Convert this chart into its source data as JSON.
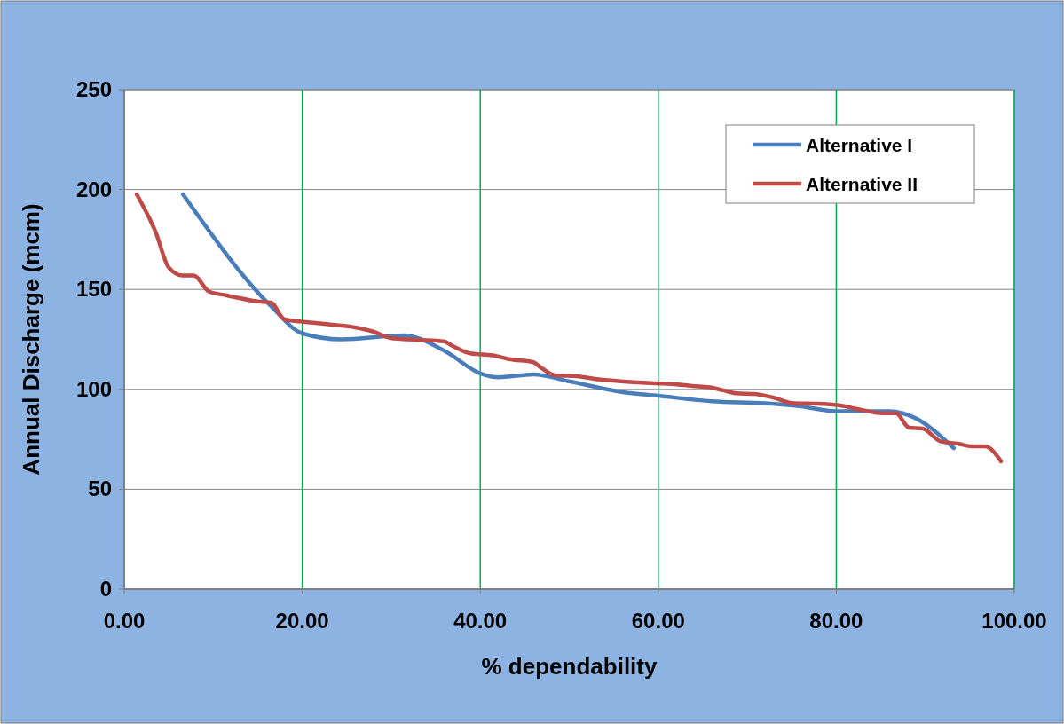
{
  "chart_data": {
    "type": "line",
    "xlabel": "% dependability",
    "ylabel": "Annual Discharge (mcm)",
    "xlim": [
      0,
      100
    ],
    "xticks": [
      {
        "value": 0,
        "label": "0.00"
      },
      {
        "value": 20,
        "label": "20.00"
      },
      {
        "value": 40,
        "label": "40.00"
      },
      {
        "value": 60,
        "label": "60.00"
      },
      {
        "value": 80,
        "label": "80.00"
      },
      {
        "value": 100,
        "label": "100.00"
      }
    ],
    "ylim": [
      0,
      250
    ],
    "yticks": [
      0,
      50,
      100,
      150,
      200,
      250
    ],
    "grid": true,
    "legend": "top right",
    "marker": "none",
    "line_style": "solid",
    "series": [
      {
        "name": "Alternative I",
        "color": "#4a7ebb",
        "x": [
          6.6,
          16.5,
          20,
          24.4,
          31.4,
          35.9,
          40,
          42,
          46,
          50,
          56,
          60,
          66,
          72,
          76,
          80,
          86,
          88.7,
          93.2
        ],
        "values": [
          197.6,
          141.6,
          128,
          125,
          127,
          119.5,
          108,
          106,
          107.5,
          104,
          98.6,
          96.8,
          94,
          93,
          91.5,
          89,
          89,
          86,
          70.6
        ]
      },
      {
        "name": "Alternative II",
        "color": "#be4b48",
        "x": [
          1.4,
          3.5,
          5,
          6.5,
          7.8,
          9.5,
          11.5,
          15,
          16.5,
          18,
          20.4,
          23.4,
          25.9,
          27.9,
          29.9,
          32.9,
          35.9,
          36.9,
          38.9,
          41.4,
          43.4,
          45.9,
          46.9,
          48.4,
          50.8,
          53.3,
          55.8,
          59.8,
          61.8,
          63.8,
          65.8,
          67.3,
          68.8,
          70.8,
          72.8,
          75.3,
          77.8,
          80.3,
          82.8,
          85.2,
          86.7,
          88.2,
          89.7,
          91.7,
          93.7,
          95.2,
          96.7,
          98.5
        ],
        "values": [
          197.6,
          179,
          161,
          157,
          157,
          149,
          147,
          144,
          143.4,
          135,
          133.7,
          132.3,
          131,
          129,
          125.7,
          124.8,
          124,
          121.7,
          118,
          117,
          115,
          113.7,
          110.6,
          107,
          106.6,
          105,
          104,
          103,
          102.6,
          101.7,
          101,
          99.5,
          98,
          97.7,
          96,
          93,
          92.8,
          92,
          89.7,
          88,
          88,
          80.8,
          80.4,
          74,
          72.8,
          71.5,
          71.5,
          64
        ]
      }
    ]
  }
}
